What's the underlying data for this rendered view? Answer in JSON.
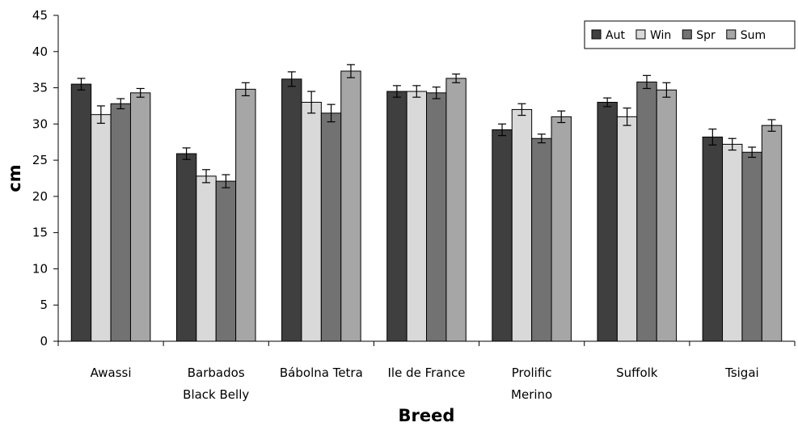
{
  "chart_data": {
    "type": "bar",
    "title": "",
    "xlabel": "Breed",
    "ylabel": "cm",
    "ylim": [
      0,
      45
    ],
    "yticks": [
      0,
      5,
      10,
      15,
      20,
      25,
      30,
      35,
      40,
      45
    ],
    "grid": false,
    "legend_position": "top-right",
    "categories": [
      [
        "Awassi"
      ],
      [
        "Barbados",
        "Black Belly"
      ],
      [
        "Bábolna Tetra"
      ],
      [
        "Ile de France"
      ],
      [
        "Prolific",
        "Merino"
      ],
      [
        "Suffolk"
      ],
      [
        "Tsigai"
      ]
    ],
    "series": [
      {
        "name": "Aut",
        "color": "#3f3f3f",
        "values": [
          35.5,
          25.9,
          36.2,
          34.5,
          29.2,
          33.0,
          28.2
        ],
        "errors": [
          0.8,
          0.8,
          1.0,
          0.8,
          0.8,
          0.6,
          1.1
        ]
      },
      {
        "name": "Win",
        "color": "#d9d9d9",
        "values": [
          31.3,
          22.8,
          33.0,
          34.5,
          32.0,
          31.0,
          27.2
        ],
        "errors": [
          1.2,
          0.9,
          1.5,
          0.8,
          0.8,
          1.2,
          0.8
        ]
      },
      {
        "name": "Spr",
        "color": "#727272",
        "values": [
          32.8,
          22.1,
          31.5,
          34.3,
          28.0,
          35.8,
          26.1
        ],
        "errors": [
          0.7,
          0.9,
          1.2,
          0.8,
          0.6,
          0.9,
          0.7
        ]
      },
      {
        "name": "Sum",
        "color": "#a6a6a6",
        "values": [
          34.3,
          34.8,
          37.3,
          36.3,
          31.0,
          34.7,
          29.8
        ],
        "errors": [
          0.6,
          0.9,
          0.9,
          0.6,
          0.8,
          1.0,
          0.8
        ]
      }
    ]
  }
}
